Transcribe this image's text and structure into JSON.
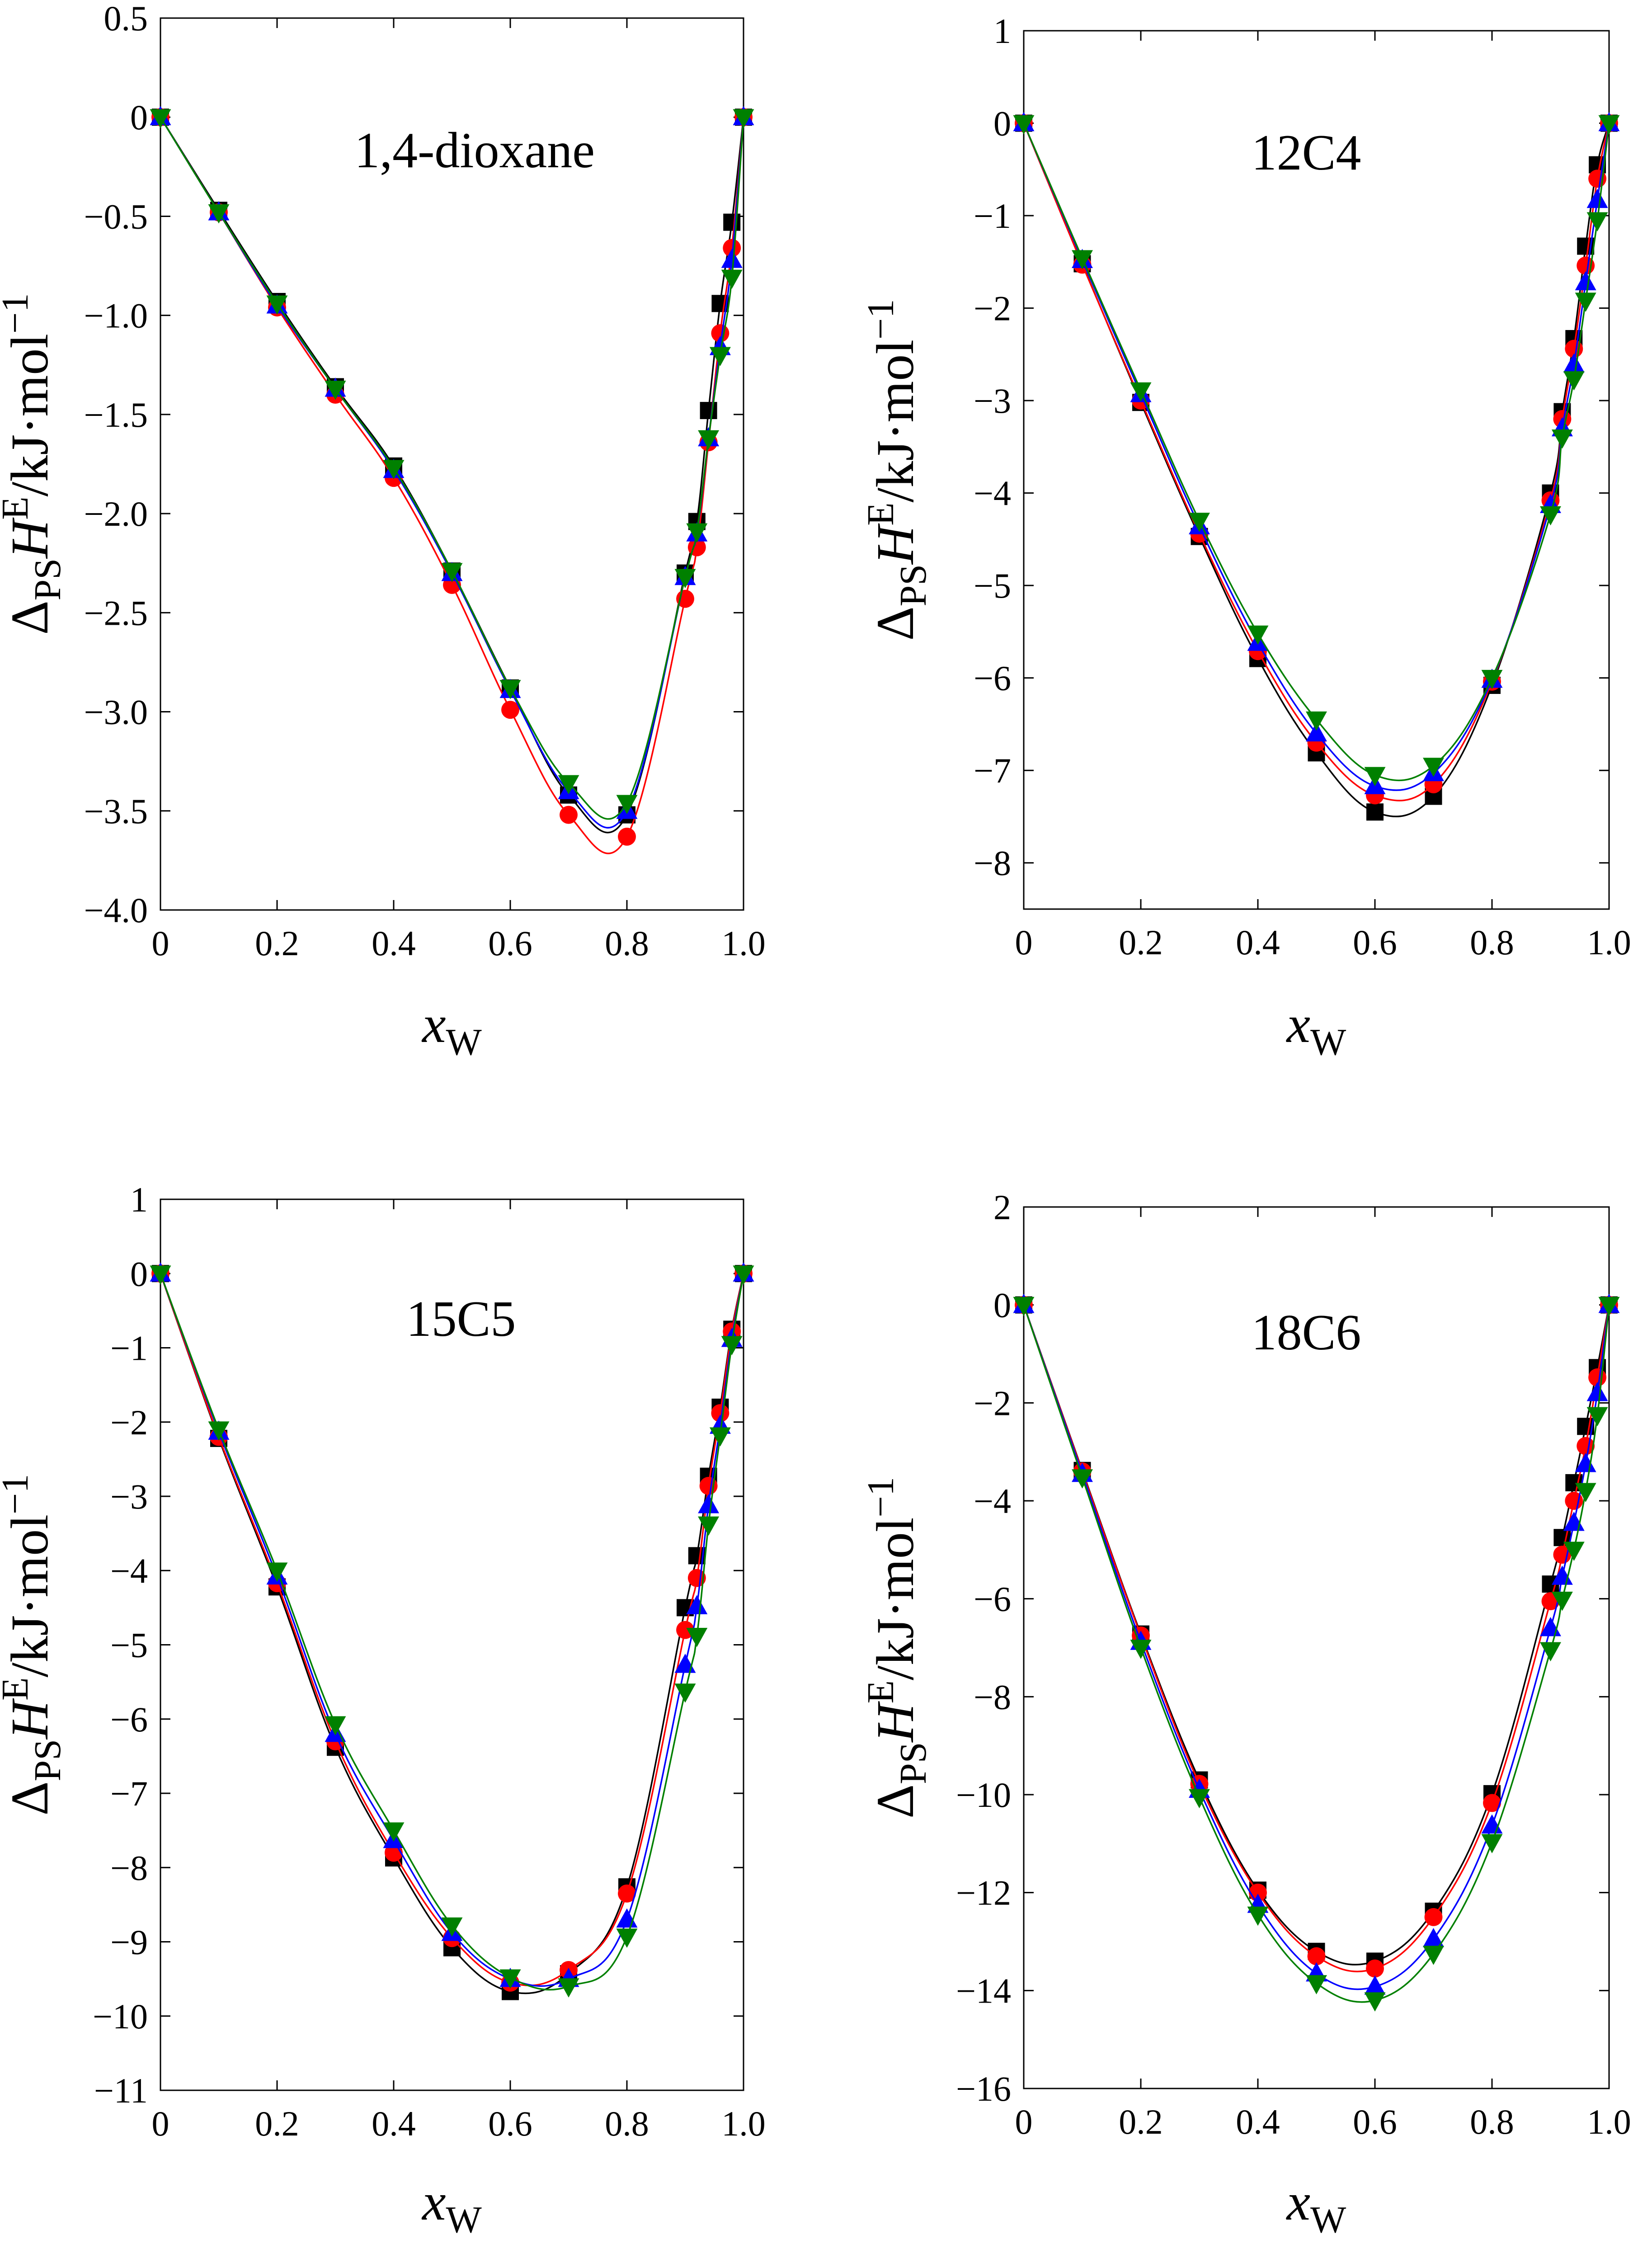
{
  "figure": {
    "x_axis_ticks": [
      "0",
      "0.2",
      "0.4",
      "0.6",
      "0.8",
      "1.0"
    ],
    "colors": {
      "black": "#000000",
      "red": "#ff0000",
      "blue": "#0000ff",
      "green": "#008000"
    },
    "marker_shapes": {
      "black": "square",
      "red": "circle",
      "blue": "triangle-up",
      "green": "triangle-down"
    }
  },
  "chart_data": [
    {
      "type": "scatter",
      "title": "1,4-dioxane",
      "xlabel": "xW",
      "ylabel": "ΔPS HE / kJ·mol−1",
      "xlim": [
        0,
        1.0
      ],
      "ylim": [
        -4.0,
        0.5
      ],
      "yticks": [
        0.5,
        0,
        -0.5,
        -1.0,
        -1.5,
        -2.0,
        -2.5,
        -3.0,
        -3.5,
        -4.0
      ],
      "ytick_labels": [
        "0.5",
        "0",
        "−0.5",
        "−1.0",
        "−1.5",
        "−2.0",
        "−2.5",
        "−3.0",
        "−3.5",
        "−4.0"
      ],
      "x": [
        0,
        0.1,
        0.2,
        0.3,
        0.4,
        0.5,
        0.6,
        0.7,
        0.8,
        0.9,
        0.92,
        0.94,
        0.96,
        0.98,
        1.0
      ],
      "series": [
        {
          "name": "black",
          "values": [
            0,
            -0.47,
            -0.93,
            -1.36,
            -1.76,
            -2.29,
            -2.88,
            -3.42,
            -3.52,
            -2.3,
            -2.04,
            -1.48,
            -0.94,
            -0.53,
            0
          ]
        },
        {
          "name": "red",
          "values": [
            0,
            -0.48,
            -0.96,
            -1.4,
            -1.82,
            -2.36,
            -2.99,
            -3.52,
            -3.63,
            -2.43,
            -2.17,
            -1.64,
            -1.09,
            -0.66,
            0
          ]
        },
        {
          "name": "blue",
          "values": [
            0,
            -0.48,
            -0.95,
            -1.37,
            -1.78,
            -2.3,
            -2.89,
            -3.4,
            -3.5,
            -2.32,
            -2.1,
            -1.62,
            -1.16,
            -0.72,
            0
          ]
        },
        {
          "name": "green",
          "values": [
            0,
            -0.48,
            -0.94,
            -1.37,
            -1.77,
            -2.29,
            -2.88,
            -3.36,
            -3.46,
            -2.32,
            -2.09,
            -1.62,
            -1.2,
            -0.81,
            0
          ]
        }
      ]
    },
    {
      "type": "scatter",
      "title": "12C4",
      "xlabel": "xW",
      "ylabel": "ΔPS HE / kJ·mol−1",
      "xlim": [
        0,
        1.0
      ],
      "ylim": [
        -8.5,
        1
      ],
      "yticks": [
        1,
        0,
        -1,
        -2,
        -3,
        -4,
        -5,
        -6,
        -7,
        -8
      ],
      "ytick_labels": [
        "1",
        "0",
        "−1",
        "−2",
        "−3",
        "−4",
        "−5",
        "−6",
        "−7",
        "−8"
      ],
      "x": [
        0,
        0.1,
        0.2,
        0.3,
        0.4,
        0.5,
        0.6,
        0.7,
        0.8,
        0.9,
        0.92,
        0.94,
        0.96,
        0.98,
        1.0
      ],
      "series": [
        {
          "name": "black",
          "values": [
            0,
            -1.52,
            -3.02,
            -4.47,
            -5.79,
            -6.81,
            -7.45,
            -7.28,
            -6.08,
            -4.0,
            -3.12,
            -2.33,
            -1.33,
            -0.45,
            0
          ]
        },
        {
          "name": "red",
          "values": [
            0,
            -1.53,
            -3.0,
            -4.44,
            -5.71,
            -6.7,
            -7.27,
            -7.15,
            -6.04,
            -4.08,
            -3.2,
            -2.44,
            -1.54,
            -0.6,
            0
          ]
        },
        {
          "name": "blue",
          "values": [
            0,
            -1.48,
            -2.93,
            -4.36,
            -5.62,
            -6.6,
            -7.17,
            -7.03,
            -6.02,
            -4.13,
            -3.3,
            -2.61,
            -1.72,
            -0.83,
            0
          ]
        },
        {
          "name": "green",
          "values": [
            0,
            -1.46,
            -2.89,
            -4.3,
            -5.52,
            -6.45,
            -7.05,
            -6.95,
            -6.0,
            -4.23,
            -3.4,
            -2.77,
            -1.92,
            -1.05,
            0
          ]
        }
      ]
    },
    {
      "type": "scatter",
      "title": "15C5",
      "xlabel": "xW",
      "ylabel": "ΔPS HE / kJ·mol−1",
      "xlim": [
        0,
        1.0
      ],
      "ylim": [
        -11,
        1
      ],
      "yticks": [
        1,
        0,
        -1,
        -2,
        -3,
        -4,
        -5,
        -6,
        -7,
        -8,
        -9,
        -10,
        -11
      ],
      "ytick_labels": [
        "1",
        "0",
        "−1",
        "−2",
        "−3",
        "−4",
        "−5",
        "−6",
        "−7",
        "−8",
        "−9",
        "−10",
        "−11"
      ],
      "x": [
        0,
        0.1,
        0.2,
        0.3,
        0.4,
        0.5,
        0.6,
        0.7,
        0.8,
        0.9,
        0.92,
        0.94,
        0.96,
        0.98,
        1.0
      ],
      "series": [
        {
          "name": "black",
          "values": [
            0,
            -2.22,
            -4.22,
            -6.38,
            -7.87,
            -9.08,
            -9.67,
            -9.43,
            -8.26,
            -4.5,
            -3.8,
            -2.73,
            -1.8,
            -0.75,
            0
          ]
        },
        {
          "name": "red",
          "values": [
            0,
            -2.2,
            -4.17,
            -6.3,
            -7.8,
            -8.95,
            -9.55,
            -9.38,
            -8.35,
            -4.8,
            -4.1,
            -2.86,
            -1.88,
            -0.78,
            0
          ]
        },
        {
          "name": "blue",
          "values": [
            0,
            -2.13,
            -4.08,
            -6.2,
            -7.63,
            -8.88,
            -9.5,
            -9.5,
            -8.7,
            -5.27,
            -4.48,
            -3.12,
            -2.05,
            -0.88,
            0
          ]
        },
        {
          "name": "green",
          "values": [
            0,
            -2.1,
            -4.0,
            -6.07,
            -7.5,
            -8.78,
            -9.48,
            -9.6,
            -8.93,
            -5.63,
            -4.88,
            -3.38,
            -2.18,
            -0.95,
            0
          ]
        }
      ]
    },
    {
      "type": "scatter",
      "title": "18C6",
      "xlabel": "xW",
      "ylabel": "ΔPS HE / kJ·mol−1",
      "xlim": [
        0,
        1.0
      ],
      "ylim": [
        -16,
        2
      ],
      "yticks": [
        2,
        0,
        -2,
        -4,
        -6,
        -8,
        -10,
        -12,
        -14,
        -16
      ],
      "ytick_labels": [
        "2",
        "0",
        "−2",
        "−4",
        "−6",
        "−8",
        "−10",
        "−12",
        "−14",
        "−16"
      ],
      "x": [
        0,
        0.1,
        0.2,
        0.3,
        0.4,
        0.5,
        0.6,
        0.7,
        0.8,
        0.9,
        0.92,
        0.94,
        0.96,
        0.98,
        1.0
      ],
      "series": [
        {
          "name": "black",
          "values": [
            0,
            -3.38,
            -6.72,
            -9.7,
            -11.95,
            -13.2,
            -13.4,
            -12.38,
            -9.98,
            -5.7,
            -4.75,
            -3.63,
            -2.48,
            -1.28,
            0
          ]
        },
        {
          "name": "red",
          "values": [
            0,
            -3.4,
            -6.75,
            -9.78,
            -12.0,
            -13.3,
            -13.55,
            -12.5,
            -10.17,
            -6.05,
            -5.1,
            -4.0,
            -2.88,
            -1.48,
            0
          ]
        },
        {
          "name": "blue",
          "values": [
            0,
            -3.45,
            -6.88,
            -9.9,
            -12.25,
            -13.65,
            -13.92,
            -12.95,
            -10.63,
            -6.6,
            -5.55,
            -4.45,
            -3.25,
            -1.8,
            0
          ]
        },
        {
          "name": "green",
          "values": [
            0,
            -3.52,
            -7.0,
            -10.05,
            -12.45,
            -13.85,
            -14.2,
            -13.25,
            -10.97,
            -7.05,
            -6.02,
            -5.0,
            -3.8,
            -2.25,
            0
          ]
        }
      ]
    }
  ]
}
